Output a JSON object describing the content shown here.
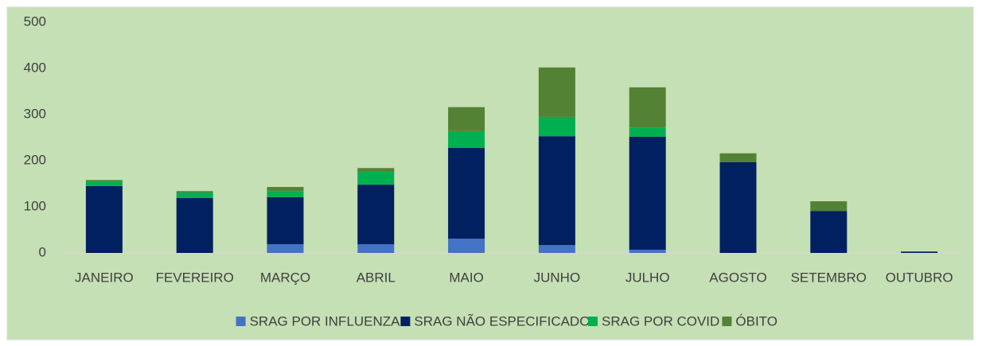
{
  "chart_data": {
    "type": "stacked_bar",
    "categories": [
      "JANEIRO",
      "FEVEREIRO",
      "MARÇO",
      "ABRIL",
      "MAIO",
      "JUNHO",
      "JULHO",
      "AGOSTO",
      "SETEMBRO",
      "OUTUBRO"
    ],
    "series": [
      {
        "name": "SRAG POR INFLUENZA",
        "color": "#4472c4",
        "values": [
          0,
          0,
          19,
          19,
          31,
          17,
          7,
          0,
          0,
          0
        ]
      },
      {
        "name": "SRAG NÃO ESPECIFICADO",
        "color": "#002060",
        "values": [
          145,
          119,
          102,
          129,
          197,
          236,
          245,
          197,
          91,
          3
        ]
      },
      {
        "name": "SRAG POR COVID",
        "color": "#00b050",
        "values": [
          10,
          12,
          13,
          28,
          36,
          42,
          20,
          0,
          0,
          0
        ]
      },
      {
        "name": "ÓBITO",
        "color": "#548235",
        "values": [
          3,
          3,
          9,
          8,
          52,
          107,
          87,
          19,
          21,
          0
        ]
      }
    ],
    "ylim": [
      0,
      500
    ],
    "yticks": [
      0,
      100,
      200,
      300,
      400,
      500
    ],
    "grid": false,
    "legend": "bottom"
  }
}
